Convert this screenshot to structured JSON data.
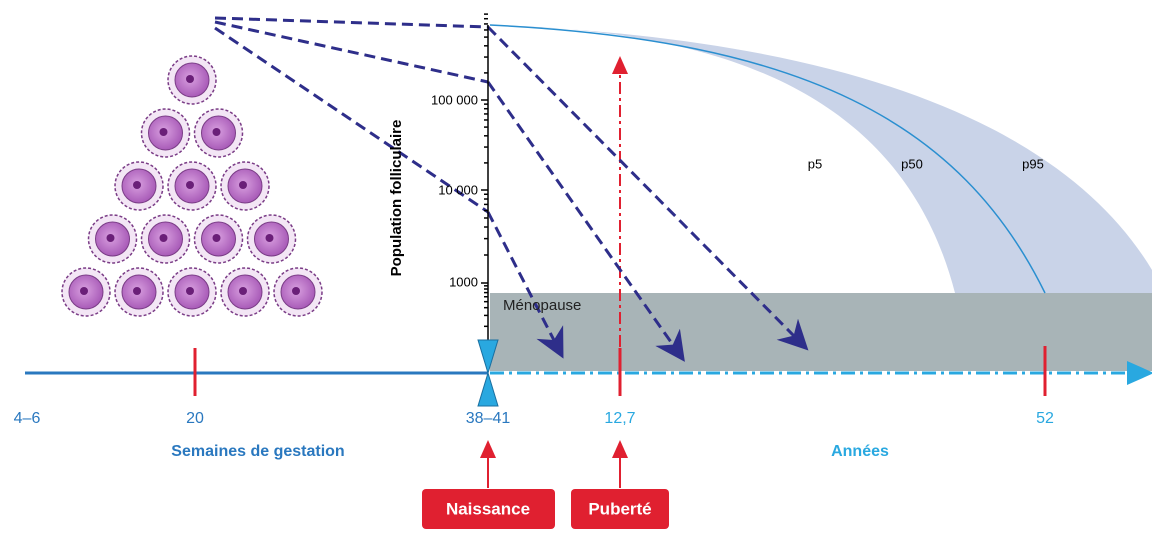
{
  "axis": {
    "label": "Population folliculaire",
    "ticks": [
      "100 000",
      "10 000",
      "1000"
    ]
  },
  "zone": "Ménopause",
  "percentiles": [
    "p5",
    "p50",
    "p95"
  ],
  "timeline": {
    "points": [
      "4–6",
      "20",
      "38–41",
      "12,7",
      "52"
    ],
    "left_label": "Semaines de gestation",
    "right_label": "Années"
  },
  "events": [
    "Naissance",
    "Puberté"
  ]
}
